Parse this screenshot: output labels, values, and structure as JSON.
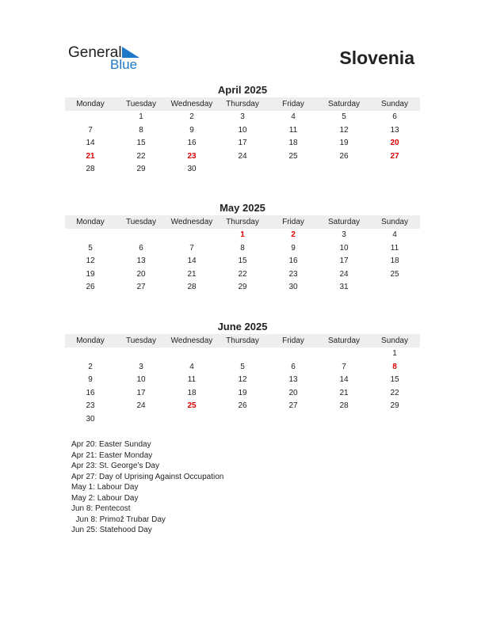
{
  "logo": {
    "text1": "General",
    "text2": "Blue",
    "color": "#1e78c8"
  },
  "country": "Slovenia",
  "weekdays": [
    "Monday",
    "Tuesday",
    "Wednesday",
    "Thursday",
    "Friday",
    "Saturday",
    "Sunday"
  ],
  "holiday_color": "#e00000",
  "months": [
    {
      "title": "April 2025",
      "weeks": [
        [
          "",
          "1",
          "2",
          "3",
          "4",
          "5",
          "6"
        ],
        [
          "7",
          "8",
          "9",
          "10",
          "11",
          "12",
          "13"
        ],
        [
          "14",
          "15",
          "16",
          "17",
          "18",
          "19",
          "20"
        ],
        [
          "21",
          "22",
          "23",
          "24",
          "25",
          "26",
          "27"
        ],
        [
          "28",
          "29",
          "30",
          "",
          "",
          "",
          ""
        ]
      ],
      "holidays": [
        "20",
        "21",
        "23",
        "27"
      ]
    },
    {
      "title": "May 2025",
      "weeks": [
        [
          "",
          "",
          "",
          "1",
          "2",
          "3",
          "4"
        ],
        [
          "5",
          "6",
          "7",
          "8",
          "9",
          "10",
          "11"
        ],
        [
          "12",
          "13",
          "14",
          "15",
          "16",
          "17",
          "18"
        ],
        [
          "19",
          "20",
          "21",
          "22",
          "23",
          "24",
          "25"
        ],
        [
          "26",
          "27",
          "28",
          "29",
          "30",
          "31",
          ""
        ]
      ],
      "holidays": [
        "1",
        "2"
      ]
    },
    {
      "title": "June 2025",
      "weeks": [
        [
          "",
          "",
          "",
          "",
          "",
          "",
          "1"
        ],
        [
          "2",
          "3",
          "4",
          "5",
          "6",
          "7",
          "8"
        ],
        [
          "9",
          "10",
          "11",
          "12",
          "13",
          "14",
          "15"
        ],
        [
          "16",
          "17",
          "18",
          "19",
          "20",
          "21",
          "22"
        ],
        [
          "23",
          "24",
          "25",
          "26",
          "27",
          "28",
          "29"
        ],
        [
          "30",
          "",
          "",
          "",
          "",
          "",
          ""
        ]
      ],
      "holidays": [
        "8",
        "25"
      ]
    }
  ],
  "holiday_list": [
    "Apr 20: Easter Sunday",
    "Apr 21: Easter Monday",
    "Apr 23: St. George’s Day",
    "Apr 27: Day of Uprising Against Occupation",
    "May 1: Labour Day",
    "May 2: Labour Day",
    "Jun 8: Pentecost",
    "  Jun 8: Primož Trubar Day",
    "Jun 25: Statehood Day"
  ]
}
